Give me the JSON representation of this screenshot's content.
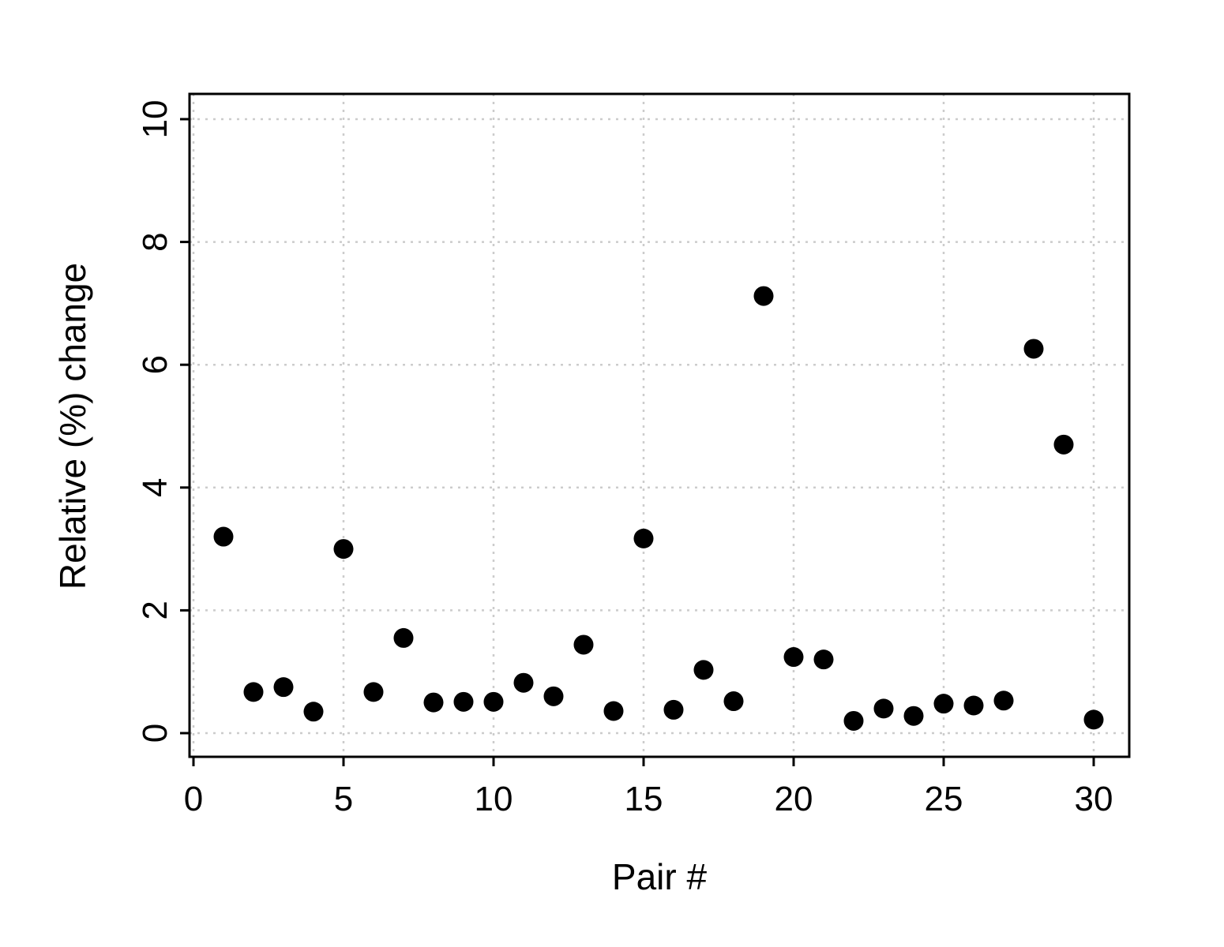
{
  "chart_data": {
    "type": "scatter",
    "title": "",
    "xlabel": "Pair #",
    "ylabel": "Relative (%) change",
    "xlim": [
      0,
      31
    ],
    "ylim": [
      0,
      10
    ],
    "x_ticks": [
      0,
      5,
      10,
      15,
      20,
      25,
      30
    ],
    "y_ticks": [
      0,
      2,
      4,
      6,
      8,
      10
    ],
    "grid": true,
    "legend": "none",
    "marker_color": "#000000",
    "grid_color": "#cccccc",
    "x": [
      1,
      2,
      3,
      4,
      5,
      6,
      7,
      8,
      9,
      10,
      11,
      12,
      13,
      14,
      15,
      16,
      17,
      18,
      19,
      20,
      21,
      22,
      23,
      24,
      25,
      26,
      27,
      28,
      29,
      30
    ],
    "y": [
      3.2,
      0.67,
      0.75,
      0.35,
      3.0,
      0.67,
      1.55,
      0.5,
      0.51,
      0.51,
      0.82,
      0.6,
      1.44,
      0.36,
      3.17,
      0.38,
      1.03,
      0.52,
      7.12,
      1.24,
      1.2,
      0.2,
      0.4,
      0.28,
      0.48,
      0.45,
      0.53,
      6.26,
      4.7,
      0.22
    ]
  }
}
